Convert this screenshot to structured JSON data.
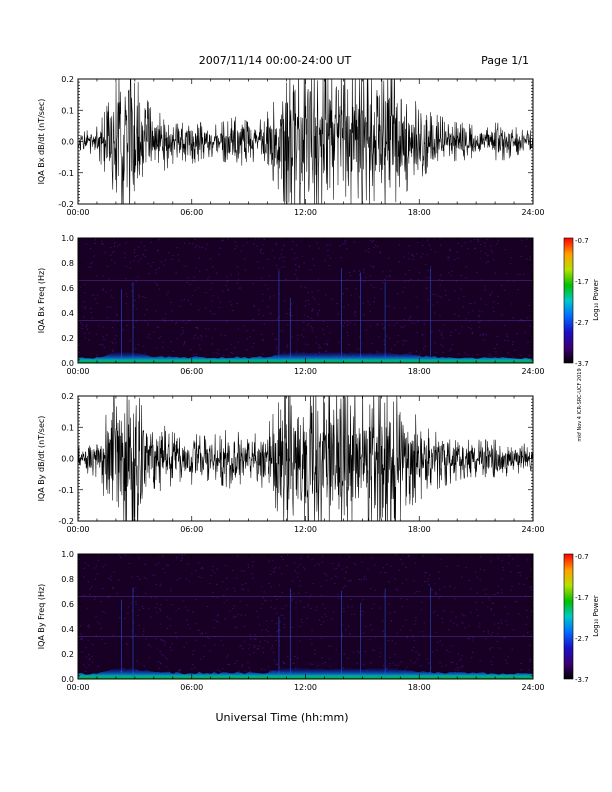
{
  "header": {
    "date_range": "2007/11/14  00:00-24:00 UT",
    "page": "Page 1/1"
  },
  "footer": {
    "xlabel": "Universal Time (hh:mm)",
    "credit": "mkf Nov 4 ICR-SRC-UCF 2019"
  },
  "x_ticks": [
    "00:00",
    "06:00",
    "12:00",
    "18:00",
    "24:00"
  ],
  "colorbar": {
    "label": "Log₁₀ Power",
    "ticks": [
      "-0.7",
      "-1.7",
      "-2.7",
      "-3.7"
    ]
  },
  "colors": {
    "trace": "#000000",
    "spectro_background": "#170024",
    "speckle": "#5a1a9e",
    "line_faint": "#6a2fb0"
  },
  "chart_data": [
    {
      "type": "line",
      "name": "bx-waveform",
      "ylabel": "IQA Bx dB/dt (nT/sec)",
      "xlim_hours": [
        0,
        24
      ],
      "ylim": [
        -0.2,
        0.2
      ],
      "y_ticks": [
        "0.2",
        "0.1",
        "0.0",
        "-0.1",
        "-0.2"
      ],
      "envelope": {
        "hours": [
          0.0,
          0.5,
          1.0,
          1.5,
          2.0,
          2.5,
          3.0,
          3.5,
          4.0,
          4.5,
          5.0,
          5.5,
          6.0,
          6.5,
          7.0,
          7.5,
          8.0,
          8.5,
          9.0,
          9.5,
          10.0,
          10.5,
          11.0,
          11.5,
          12.0,
          12.5,
          13.0,
          13.5,
          14.0,
          14.5,
          15.0,
          15.5,
          16.0,
          16.5,
          17.0,
          17.5,
          18.0,
          18.5,
          19.0,
          19.5,
          20.0,
          20.5,
          21.0,
          21.5,
          22.0,
          22.5,
          23.0,
          23.5,
          24.0
        ],
        "amplitude": [
          0.02,
          0.03,
          0.04,
          0.09,
          0.19,
          0.2,
          0.2,
          0.13,
          0.07,
          0.08,
          0.06,
          0.05,
          0.06,
          0.05,
          0.04,
          0.05,
          0.06,
          0.07,
          0.05,
          0.06,
          0.08,
          0.12,
          0.18,
          0.2,
          0.2,
          0.2,
          0.2,
          0.2,
          0.2,
          0.2,
          0.19,
          0.18,
          0.2,
          0.2,
          0.16,
          0.12,
          0.1,
          0.08,
          0.07,
          0.06,
          0.05,
          0.05,
          0.04,
          0.04,
          0.05,
          0.05,
          0.04,
          0.03,
          0.03
        ]
      }
    },
    {
      "type": "heatmap",
      "name": "bx-spectrogram",
      "ylabel": "IQA Bx Freq (Hz)",
      "xlim_hours": [
        0,
        24
      ],
      "ylim": [
        0.0,
        1.0
      ],
      "y_ticks": [
        "1.0",
        "0.8",
        "0.6",
        "0.4",
        "0.2",
        "0.0"
      ],
      "zlim": [
        -3.7,
        -0.7
      ],
      "zlabel": "Log₁₀ Power"
    },
    {
      "type": "line",
      "name": "by-waveform",
      "ylabel": "IQA By dB/dt (nT/sec)",
      "xlim_hours": [
        0,
        24
      ],
      "ylim": [
        -0.2,
        0.2
      ],
      "y_ticks": [
        "0.2",
        "0.1",
        "0.0",
        "-0.1",
        "-0.2"
      ],
      "envelope": {
        "hours": [
          0.0,
          0.5,
          1.0,
          1.5,
          2.0,
          2.5,
          3.0,
          3.5,
          4.0,
          4.5,
          5.0,
          5.5,
          6.0,
          6.5,
          7.0,
          7.5,
          8.0,
          8.5,
          9.0,
          9.5,
          10.0,
          10.5,
          11.0,
          11.5,
          12.0,
          12.5,
          13.0,
          13.5,
          14.0,
          14.5,
          15.0,
          15.5,
          16.0,
          16.5,
          17.0,
          17.5,
          18.0,
          18.5,
          19.0,
          19.5,
          20.0,
          20.5,
          21.0,
          21.5,
          22.0,
          22.5,
          23.0,
          23.5,
          24.0
        ],
        "amplitude": [
          0.03,
          0.04,
          0.05,
          0.12,
          0.2,
          0.2,
          0.2,
          0.12,
          0.08,
          0.09,
          0.07,
          0.06,
          0.07,
          0.06,
          0.06,
          0.07,
          0.08,
          0.07,
          0.06,
          0.07,
          0.09,
          0.14,
          0.2,
          0.2,
          0.2,
          0.2,
          0.2,
          0.2,
          0.2,
          0.2,
          0.2,
          0.19,
          0.2,
          0.2,
          0.16,
          0.13,
          0.11,
          0.1,
          0.08,
          0.07,
          0.06,
          0.05,
          0.05,
          0.05,
          0.05,
          0.05,
          0.04,
          0.04,
          0.04
        ]
      }
    },
    {
      "type": "heatmap",
      "name": "by-spectrogram",
      "ylabel": "IQA By Freq (Hz)",
      "xlim_hours": [
        0,
        24
      ],
      "ylim": [
        0.0,
        1.0
      ],
      "y_ticks": [
        "1.0",
        "0.8",
        "0.6",
        "0.4",
        "0.2",
        "0.0"
      ],
      "zlim": [
        -3.7,
        -0.7
      ],
      "zlabel": "Log₁₀ Power"
    }
  ]
}
